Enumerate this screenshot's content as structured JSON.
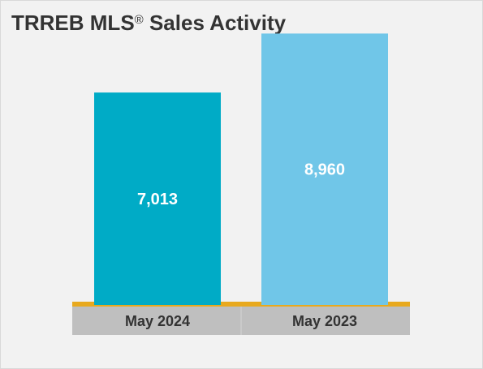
{
  "title": {
    "main": "TRREB MLS",
    "mark": "®",
    "rest": " Sales Activity"
  },
  "colors": {
    "background": "#f2f2f2",
    "bar_may_2024": "#00abc6",
    "bar_may_2023": "#70c6e8",
    "axis_line": "#e8a91e",
    "category_band": "#bfbfbf",
    "value_text": "#ffffff",
    "label_text": "#333333"
  },
  "chart_data": {
    "type": "bar",
    "categories": [
      "May 2024",
      "May 2023"
    ],
    "values": [
      7013,
      8960
    ],
    "value_labels": [
      "7,013",
      "8,960"
    ],
    "ylim": [
      0,
      9800
    ],
    "grid": false,
    "legend": "none"
  }
}
